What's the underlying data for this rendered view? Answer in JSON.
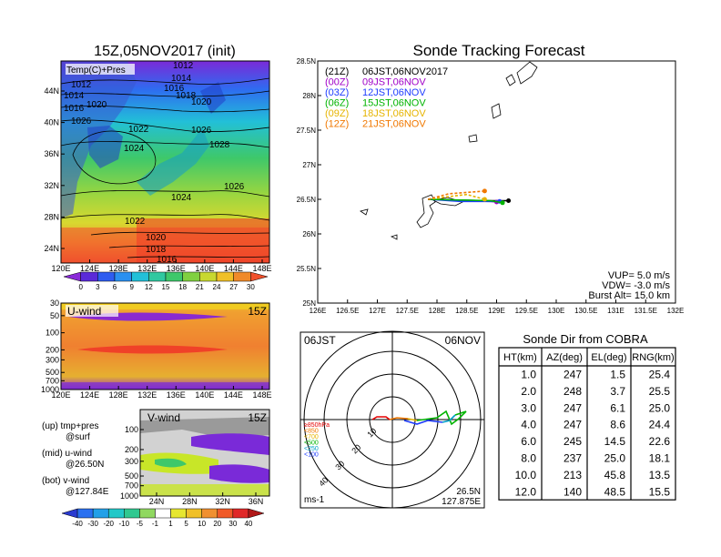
{
  "left_panel": {
    "title": "15Z,05NOV2017 (init)",
    "map_label": "Temp(C)+Pres",
    "lat_ticks": [
      "44N",
      "40N",
      "36N",
      "32N",
      "28N",
      "24N"
    ],
    "lon_ticks": [
      "120E",
      "124E",
      "128E",
      "132E",
      "136E",
      "140E",
      "144E",
      "148E"
    ],
    "isobar_labels": [
      "1012",
      "1014",
      "1016",
      "1012",
      "1014",
      "1016",
      "1018",
      "1020",
      "1026",
      "1020",
      "1022",
      "1024",
      "1026",
      "1028",
      "1026",
      "1024",
      "1022",
      "1020",
      "1018",
      "1016"
    ],
    "temp_colorbar": [
      "0",
      "3",
      "6",
      "9",
      "12",
      "15",
      "18",
      "21",
      "24",
      "27",
      "30"
    ]
  },
  "uwind": {
    "label": "U-wind",
    "time": "15Z",
    "p_ticks": [
      "30",
      "50",
      "100",
      "200",
      "300",
      "500",
      "700",
      "1000"
    ],
    "lon_ticks": [
      "120E",
      "124E",
      "128E",
      "132E",
      "136E",
      "140E",
      "144E",
      "148E"
    ]
  },
  "vwind": {
    "label": "V-wind",
    "time": "15Z",
    "p_ticks": [
      "100",
      "200",
      "300",
      "500",
      "700",
      "1000"
    ],
    "lat_ticks": [
      "24N",
      "28N",
      "32N",
      "36N"
    ]
  },
  "notes": {
    "up": "(up) tmp+pres",
    "up2": "@surf",
    "mid": "(mid) u-wind",
    "mid2": "@26.50N",
    "bot": "(bot) v-wind",
    "bot2": "@127.84E"
  },
  "wind_colorbar": [
    "-40",
    "-30",
    "-20",
    "-10",
    "-5",
    "-1",
    "1",
    "5",
    "10",
    "20",
    "30",
    "40"
  ],
  "tracking": {
    "title": "Sonde Tracking Forecast",
    "lat_ticks": [
      "28.5N",
      "28N",
      "27.5N",
      "27N",
      "26.5N",
      "26N",
      "25.5N",
      "25N"
    ],
    "lon_ticks": [
      "126E",
      "126.5E",
      "127E",
      "127.5E",
      "128E",
      "128.5E",
      "129E",
      "129.5E",
      "130E",
      "130.5E",
      "131E",
      "131.5E",
      "132E"
    ],
    "legend": [
      {
        "code": "(21Z)",
        "time": "06JST,06NOV2017",
        "color": "#000000"
      },
      {
        "code": "(00Z)",
        "time": "09JST,06NOV",
        "color": "#a000c8"
      },
      {
        "code": "(03Z)",
        "time": "12JST,06NOV",
        "color": "#1e3cff"
      },
      {
        "code": "(06Z)",
        "time": "15JST,06NOV",
        "color": "#00b400"
      },
      {
        "code": "(09Z)",
        "time": "18JST,06NOV",
        "color": "#e6b400"
      },
      {
        "code": "(12Z)",
        "time": "21JST,06NOV",
        "color": "#f07800"
      }
    ],
    "params": [
      "VUP= 5.0 m/s",
      "VDW= -3.0 m/s",
      "Burst Alt= 15.0 km"
    ]
  },
  "polar": {
    "time": "06JST",
    "date": "06NOV",
    "ring_labels": [
      "10",
      "20",
      "30",
      "40"
    ],
    "unit": "ms-1",
    "lat": "26.5N",
    "lon": "127.875E",
    "levels": [
      {
        "label": "≥850hPa",
        "color": "#e60000"
      },
      {
        "label": "<850",
        "color": "#f07800"
      },
      {
        "label": "<700",
        "color": "#e6b400"
      },
      {
        "label": "<500",
        "color": "#00b400"
      },
      {
        "label": "<250",
        "color": "#00a0c8"
      },
      {
        "label": "<100",
        "color": "#1e3cff"
      }
    ]
  },
  "sonde_table": {
    "title": "Sonde Dir from COBRA",
    "headers": [
      "HT(km)",
      "AZ(deg)",
      "EL(deg)",
      "RNG(km)"
    ],
    "rows": [
      [
        "1.0",
        "247",
        "1.5",
        "25.4"
      ],
      [
        "2.0",
        "248",
        "3.7",
        "25.5"
      ],
      [
        "3.0",
        "247",
        "6.1",
        "25.0"
      ],
      [
        "4.0",
        "247",
        "8.6",
        "24.4"
      ],
      [
        "6.0",
        "245",
        "14.5",
        "22.6"
      ],
      [
        "8.0",
        "237",
        "25.0",
        "18.1"
      ],
      [
        "10.0",
        "213",
        "45.8",
        "13.5"
      ],
      [
        "12.0",
        "140",
        "48.5",
        "15.5"
      ]
    ]
  },
  "chart_data": [
    {
      "type": "line",
      "title": "Sonde Tracking Forecast",
      "xlabel": "",
      "ylabel": "",
      "xlim": [
        126,
        132
      ],
      "ylim": [
        25,
        28.5
      ],
      "series": [
        {
          "name": "(21Z) 06JST,06NOV2017",
          "x": [
            127.85,
            128.3,
            128.8,
            129.2
          ],
          "y": [
            26.5,
            26.49,
            26.48,
            26.48
          ]
        },
        {
          "name": "(00Z) 09JST,06NOV",
          "x": [
            127.85,
            128.4,
            128.9,
            129.0
          ],
          "y": [
            26.5,
            26.48,
            26.47,
            26.46
          ]
        },
        {
          "name": "(03Z) 12JST,06NOV",
          "x": [
            127.85,
            128.4,
            128.9,
            129.05
          ],
          "y": [
            26.5,
            26.47,
            26.47,
            26.47
          ]
        },
        {
          "name": "(06Z) 15JST,06NOV",
          "x": [
            127.85,
            128.4,
            128.9,
            129.1
          ],
          "y": [
            26.5,
            26.49,
            26.48,
            26.45
          ]
        },
        {
          "name": "(09Z) 18JST,06NOV",
          "x": [
            127.85,
            128.3,
            128.5,
            128.8
          ],
          "y": [
            26.5,
            26.55,
            26.57,
            26.5
          ]
        },
        {
          "name": "(12Z) 21JST,06NOV",
          "x": [
            127.85,
            128.2,
            128.5,
            128.8
          ],
          "y": [
            26.5,
            26.58,
            26.6,
            26.62
          ]
        }
      ]
    },
    {
      "type": "table",
      "title": "Sonde Dir from COBRA",
      "columns": [
        "HT(km)",
        "AZ(deg)",
        "EL(deg)",
        "RNG(km)"
      ],
      "rows": [
        [
          1.0,
          247,
          1.5,
          25.4
        ],
        [
          2.0,
          248,
          3.7,
          25.5
        ],
        [
          3.0,
          247,
          6.1,
          25.0
        ],
        [
          4.0,
          247,
          8.6,
          24.4
        ],
        [
          6.0,
          245,
          14.5,
          22.6
        ],
        [
          8.0,
          237,
          25.0,
          18.1
        ],
        [
          10.0,
          213,
          45.8,
          13.5
        ],
        [
          12.0,
          140,
          48.5,
          15.5
        ]
      ]
    }
  ]
}
